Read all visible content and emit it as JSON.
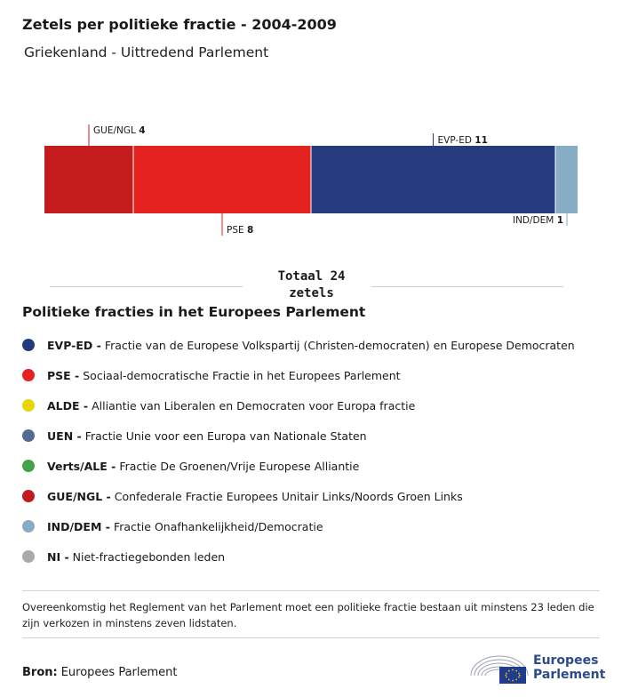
{
  "header": {
    "title": "Zetels per politieke fractie - 2004-2009",
    "subtitle": "Griekenland - Uittredend Parlement"
  },
  "chart_data": {
    "type": "bar",
    "orientation": "horizontal-stacked",
    "total": 24,
    "total_label": "Totaal 24 zetels",
    "segments": [
      {
        "group": "GUE/NGL",
        "value": 4,
        "color": "#c41c1c",
        "label_side": "top"
      },
      {
        "group": "PSE",
        "value": 8,
        "color": "#e4221f",
        "label_side": "bottom"
      },
      {
        "group": "EVP-ED",
        "value": 11,
        "color": "#263a7e",
        "label_side": "top"
      },
      {
        "group": "IND/DEM",
        "value": 1,
        "color": "#86adc3",
        "label_side": "bottom"
      }
    ]
  },
  "legend": {
    "heading": "Politieke fracties in het Europees Parlement",
    "items": [
      {
        "abbr": "EVP-ED -",
        "desc": "Fractie van de Europese Volkspartij (Christen-democraten) en Europese Democraten",
        "color": "#263a7e"
      },
      {
        "abbr": "PSE -",
        "desc": "Sociaal-democratische Fractie in het Europees Parlement",
        "color": "#e4221f"
      },
      {
        "abbr": "ALDE -",
        "desc": "Alliantie van Liberalen en Democraten voor Europa fractie",
        "color": "#e6d600"
      },
      {
        "abbr": "UEN -",
        "desc": "Fractie Unie voor een Europa van Nationale Staten",
        "color": "#566b94"
      },
      {
        "abbr": "Verts/ALE -",
        "desc": "Fractie De Groenen/Vrije Europese Alliantie",
        "color": "#43a447"
      },
      {
        "abbr": "GUE/NGL -",
        "desc": "Confederale Fractie Europees Unitair Links/Noords Groen Links",
        "color": "#c41c1c"
      },
      {
        "abbr": "IND/DEM -",
        "desc": "Fractie Onafhankelijkheid/Democratie",
        "color": "#86adc3"
      },
      {
        "abbr": "NI -",
        "desc": "Niet-fractiegebonden leden",
        "color": "#aaaaaa"
      }
    ]
  },
  "footer": {
    "note": "Overeenkomstig het Reglement van het Parlement moet een politieke fractie bestaan uit minstens 23 leden die zijn verkozen in minstens zeven lidstaten.",
    "source_label": "Bron:",
    "source_value": "Europees Parlement",
    "logo_line1": "Europees",
    "logo_line2": "Parlement"
  }
}
